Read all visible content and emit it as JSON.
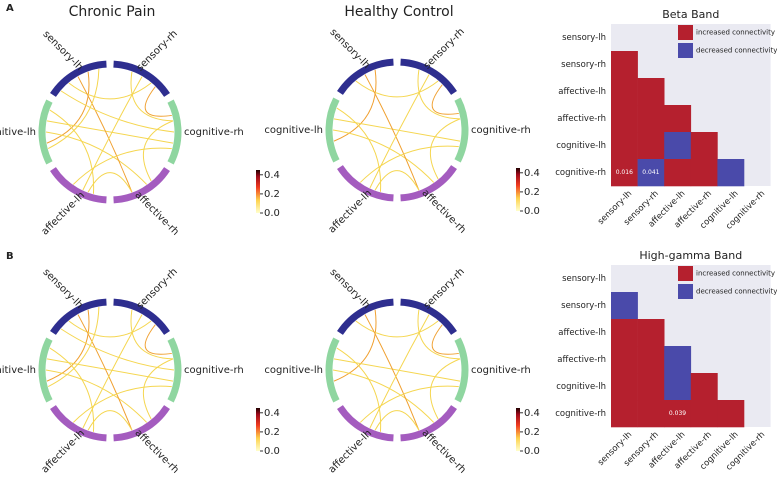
{
  "panel_labels": [
    "A",
    "B"
  ],
  "chart_data": [
    {
      "type": "chord",
      "title": "Chronic Pain",
      "nodes": [
        "sensory-lh",
        "sensory-rh",
        "cognitive-lh",
        "cognitive-rh",
        "affective-lh",
        "affective-rh"
      ],
      "node_colors": [
        "#2e2e8f",
        "#2e2e8f",
        "#8fd6a0",
        "#8fd6a0",
        "#a45cbf",
        "#a45cbf"
      ],
      "clim": [
        0,
        0.45
      ],
      "cticks": [
        {
          "value": 0,
          "label": "0.0"
        },
        {
          "value": 0.2,
          "label": "0.2"
        },
        {
          "value": 0.4,
          "label": "0.4"
        }
      ]
    },
    {
      "type": "chord",
      "title": "Healthy Control",
      "nodes": [
        "sensory-lh",
        "sensory-rh",
        "cognitive-lh",
        "cognitive-rh",
        "affective-lh",
        "affective-rh"
      ],
      "node_colors": [
        "#2e2e8f",
        "#2e2e8f",
        "#8fd6a0",
        "#8fd6a0",
        "#a45cbf",
        "#a45cbf"
      ],
      "clim": [
        0,
        0.45
      ],
      "cticks": [
        {
          "value": 0,
          "label": "0.0"
        },
        {
          "value": 0.2,
          "label": "0.2"
        },
        {
          "value": 0.4,
          "label": "0.4"
        }
      ]
    },
    {
      "type": "matrix",
      "title": "Beta Band",
      "rows": [
        "sensory-lh",
        "sensory-rh",
        "affective-lh",
        "affective-rh",
        "cognitive-lh",
        "cognitive-rh"
      ],
      "columns": [
        "sensory-lh",
        "sensory-rh",
        "affective-lh",
        "affective-rh",
        "cognitive-lh",
        "cognitive-rh"
      ],
      "legend": [
        "increased connectivity",
        "decreased connectivity"
      ],
      "colors": [
        "#b5202e",
        "#4a4aaa"
      ],
      "cells": [
        [
          null,
          null,
          null,
          null,
          null,
          null
        ],
        [
          0,
          null,
          null,
          null,
          null,
          null
        ],
        [
          0,
          0,
          null,
          null,
          null,
          null
        ],
        [
          0,
          0,
          0,
          null,
          null,
          null
        ],
        [
          0,
          0,
          1,
          0,
          null,
          null
        ],
        [
          0,
          1,
          0,
          0,
          1,
          null
        ]
      ],
      "annotations": [
        {
          "row": 5,
          "col": 0,
          "text": "0.016"
        },
        {
          "row": 5,
          "col": 1,
          "text": "0.041"
        }
      ]
    },
    {
      "type": "chord",
      "nodes": [
        "sensory-lh",
        "sensory-rh",
        "cognitive-lh",
        "cognitive-rh",
        "affective-lh",
        "affective-rh"
      ],
      "node_colors": [
        "#2e2e8f",
        "#2e2e8f",
        "#8fd6a0",
        "#8fd6a0",
        "#a45cbf",
        "#a45cbf"
      ],
      "clim": [
        0,
        0.45
      ],
      "cticks": [
        {
          "value": 0,
          "label": "0.0"
        },
        {
          "value": 0.2,
          "label": "0.2"
        },
        {
          "value": 0.4,
          "label": "0.4"
        }
      ]
    },
    {
      "type": "chord",
      "nodes": [
        "sensory-lh",
        "sensory-rh",
        "cognitive-lh",
        "cognitive-rh",
        "affective-lh",
        "affective-rh"
      ],
      "node_colors": [
        "#2e2e8f",
        "#2e2e8f",
        "#8fd6a0",
        "#8fd6a0",
        "#a45cbf",
        "#a45cbf"
      ],
      "clim": [
        0,
        0.45
      ],
      "cticks": [
        {
          "value": 0,
          "label": "0.0"
        },
        {
          "value": 0.2,
          "label": "0.2"
        },
        {
          "value": 0.4,
          "label": "0.4"
        }
      ]
    },
    {
      "type": "matrix",
      "title": "High-gamma Band",
      "rows": [
        "sensory-lh",
        "sensory-rh",
        "affective-lh",
        "affective-rh",
        "cognitive-lh",
        "cognitive-rh"
      ],
      "columns": [
        "sensory-lh",
        "sensory-rh",
        "affective-lh",
        "affective-rh",
        "cognitive-lh",
        "cognitive-rh"
      ],
      "legend": [
        "increased connectivity",
        "decreased connectivity"
      ],
      "colors": [
        "#b5202e",
        "#4a4aaa"
      ],
      "cells": [
        [
          null,
          null,
          null,
          null,
          null,
          null
        ],
        [
          1,
          null,
          null,
          null,
          null,
          null
        ],
        [
          0,
          0,
          null,
          null,
          null,
          null
        ],
        [
          0,
          0,
          1,
          null,
          null,
          null
        ],
        [
          0,
          0,
          1,
          0,
          null,
          null
        ],
        [
          0,
          0,
          0,
          0,
          0,
          null
        ]
      ],
      "annotations": [
        {
          "row": 5,
          "col": 2,
          "text": "0.039"
        }
      ]
    }
  ]
}
